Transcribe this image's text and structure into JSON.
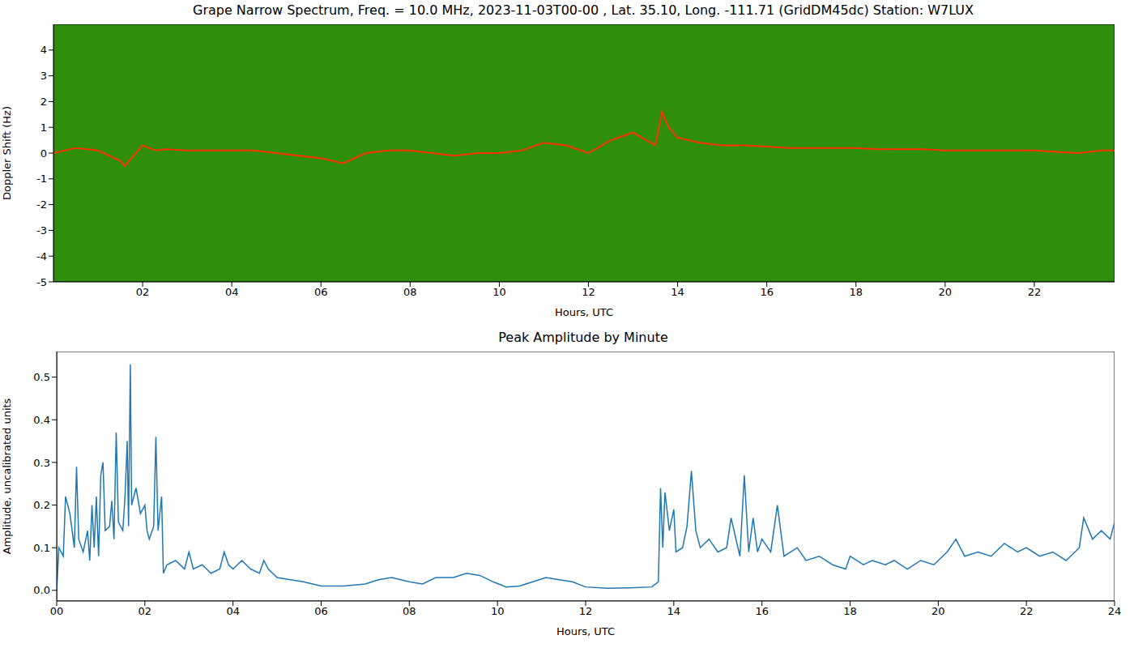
{
  "chart_data": [
    {
      "type": "line",
      "title": "Grape Narrow Spectrum, Freq. = 10.0 MHz, 2023-11-03T00-00 , Lat.  35.10, Long. -111.71 (GridDM45dc) Station: W7LUX",
      "x_label": "Hours, UTC",
      "y_label": "Doppler Shift (Hz)",
      "x": [
        0,
        0.5,
        1.0,
        1.5,
        1.6,
        2.0,
        2.3,
        2.5,
        3.0,
        3.5,
        4.0,
        4.5,
        5.0,
        5.5,
        6.0,
        6.5,
        7.0,
        7.5,
        8.0,
        8.5,
        9.0,
        9.5,
        10.0,
        10.5,
        11.0,
        11.5,
        12.0,
        12.5,
        13.0,
        13.5,
        13.65,
        13.8,
        14.0,
        14.5,
        15.0,
        15.5,
        16.0,
        16.5,
        17.0,
        17.5,
        18.0,
        18.5,
        19.0,
        19.5,
        20.0,
        20.5,
        21.0,
        21.5,
        22.0,
        22.5,
        23.0,
        23.5,
        23.8
      ],
      "values": [
        0.0,
        0.2,
        0.1,
        -0.3,
        -0.5,
        0.3,
        0.1,
        0.15,
        0.1,
        0.1,
        0.1,
        0.1,
        0.0,
        -0.1,
        -0.2,
        -0.4,
        0.0,
        0.1,
        0.1,
        0.0,
        -0.1,
        0.0,
        0.0,
        0.1,
        0.4,
        0.3,
        0.0,
        0.5,
        0.8,
        0.3,
        1.6,
        1.0,
        0.6,
        0.4,
        0.3,
        0.3,
        0.25,
        0.2,
        0.2,
        0.2,
        0.2,
        0.15,
        0.15,
        0.15,
        0.1,
        0.1,
        0.1,
        0.1,
        0.1,
        0.05,
        0.0,
        0.1,
        0.1
      ],
      "color": "#ff3300",
      "xlim": [
        0,
        23.8
      ],
      "xticks": [
        {
          "value": 2,
          "label": "02"
        },
        {
          "value": 4,
          "label": "04"
        },
        {
          "value": 6,
          "label": "06"
        },
        {
          "value": 8,
          "label": "08"
        },
        {
          "value": 10,
          "label": "10"
        },
        {
          "value": 12,
          "label": "12"
        },
        {
          "value": 14,
          "label": "14"
        },
        {
          "value": 16,
          "label": "16"
        },
        {
          "value": 18,
          "label": "18"
        },
        {
          "value": 20,
          "label": "20"
        },
        {
          "value": 22,
          "label": "22"
        }
      ],
      "ylim": [
        -5,
        5
      ],
      "yticks": [
        -5,
        -4,
        -3,
        -2,
        -1,
        0,
        1,
        2,
        3,
        4
      ],
      "grid": false
    },
    {
      "type": "line",
      "title": "Peak Amplitude by Minute",
      "x_label": "Hours, UTC",
      "y_label": "Amplitude, uncalibrated units",
      "x": [
        0.0,
        0.05,
        0.15,
        0.2,
        0.3,
        0.4,
        0.45,
        0.5,
        0.6,
        0.7,
        0.75,
        0.8,
        0.85,
        0.9,
        0.95,
        1.0,
        1.05,
        1.1,
        1.2,
        1.25,
        1.3,
        1.35,
        1.4,
        1.5,
        1.55,
        1.6,
        1.63,
        1.67,
        1.7,
        1.8,
        1.9,
        2.0,
        2.05,
        2.1,
        2.2,
        2.25,
        2.3,
        2.38,
        2.42,
        2.5,
        2.7,
        2.9,
        3.0,
        3.1,
        3.3,
        3.5,
        3.7,
        3.8,
        3.9,
        4.0,
        4.2,
        4.4,
        4.6,
        4.7,
        4.8,
        5.0,
        5.3,
        5.6,
        6.0,
        6.5,
        7.0,
        7.3,
        7.6,
        8.0,
        8.3,
        8.6,
        9.0,
        9.3,
        9.6,
        9.9,
        10.2,
        10.5,
        10.8,
        11.1,
        11.4,
        11.7,
        12.0,
        12.5,
        13.0,
        13.5,
        13.65,
        13.7,
        13.75,
        13.8,
        13.9,
        14.0,
        14.05,
        14.2,
        14.3,
        14.4,
        14.5,
        14.6,
        14.8,
        15.0,
        15.2,
        15.3,
        15.5,
        15.6,
        15.7,
        15.8,
        15.9,
        16.0,
        16.2,
        16.35,
        16.5,
        16.8,
        17.0,
        17.3,
        17.6,
        17.9,
        18.0,
        18.3,
        18.5,
        18.8,
        19.0,
        19.3,
        19.6,
        19.9,
        20.2,
        20.4,
        20.6,
        20.9,
        21.2,
        21.5,
        21.8,
        22.0,
        22.3,
        22.6,
        22.9,
        23.2,
        23.3,
        23.5,
        23.7,
        23.9,
        24.0
      ],
      "values": [
        0.0,
        0.1,
        0.08,
        0.22,
        0.18,
        0.1,
        0.29,
        0.12,
        0.09,
        0.14,
        0.07,
        0.2,
        0.1,
        0.22,
        0.08,
        0.27,
        0.3,
        0.14,
        0.15,
        0.21,
        0.12,
        0.37,
        0.16,
        0.14,
        0.22,
        0.35,
        0.15,
        0.53,
        0.2,
        0.24,
        0.18,
        0.2,
        0.14,
        0.12,
        0.15,
        0.36,
        0.14,
        0.22,
        0.04,
        0.06,
        0.07,
        0.05,
        0.09,
        0.05,
        0.06,
        0.04,
        0.05,
        0.09,
        0.06,
        0.05,
        0.07,
        0.05,
        0.04,
        0.07,
        0.05,
        0.03,
        0.025,
        0.02,
        0.01,
        0.01,
        0.015,
        0.025,
        0.03,
        0.02,
        0.015,
        0.03,
        0.03,
        0.04,
        0.035,
        0.02,
        0.008,
        0.01,
        0.02,
        0.03,
        0.025,
        0.02,
        0.008,
        0.005,
        0.006,
        0.008,
        0.02,
        0.24,
        0.1,
        0.23,
        0.14,
        0.19,
        0.09,
        0.1,
        0.15,
        0.28,
        0.14,
        0.1,
        0.12,
        0.09,
        0.1,
        0.17,
        0.08,
        0.27,
        0.09,
        0.17,
        0.09,
        0.12,
        0.09,
        0.2,
        0.08,
        0.1,
        0.07,
        0.08,
        0.06,
        0.05,
        0.08,
        0.06,
        0.07,
        0.06,
        0.07,
        0.05,
        0.07,
        0.06,
        0.09,
        0.12,
        0.08,
        0.09,
        0.08,
        0.11,
        0.09,
        0.1,
        0.08,
        0.09,
        0.07,
        0.1,
        0.17,
        0.12,
        0.14,
        0.12,
        0.16
      ],
      "color": "#1f77b4",
      "xlim": [
        0,
        24
      ],
      "xticks": [
        {
          "value": 0,
          "label": "00"
        },
        {
          "value": 2,
          "label": "02"
        },
        {
          "value": 4,
          "label": "04"
        },
        {
          "value": 6,
          "label": "06"
        },
        {
          "value": 8,
          "label": "08"
        },
        {
          "value": 10,
          "label": "10"
        },
        {
          "value": 12,
          "label": "12"
        },
        {
          "value": 14,
          "label": "14"
        },
        {
          "value": 16,
          "label": "16"
        },
        {
          "value": 18,
          "label": "18"
        },
        {
          "value": 20,
          "label": "20"
        },
        {
          "value": 22,
          "label": "22"
        },
        {
          "value": 24,
          "label": "24"
        }
      ],
      "ylim": [
        -0.025,
        0.56
      ],
      "yticks": [
        {
          "value": 0,
          "label": "0.0"
        },
        {
          "value": 0.1,
          "label": "0.1"
        },
        {
          "value": 0.2,
          "label": "0.2"
        },
        {
          "value": 0.3,
          "label": "0.3"
        },
        {
          "value": 0.4,
          "label": "0.4"
        },
        {
          "value": 0.5,
          "label": "0.5"
        }
      ],
      "grid": false
    }
  ]
}
